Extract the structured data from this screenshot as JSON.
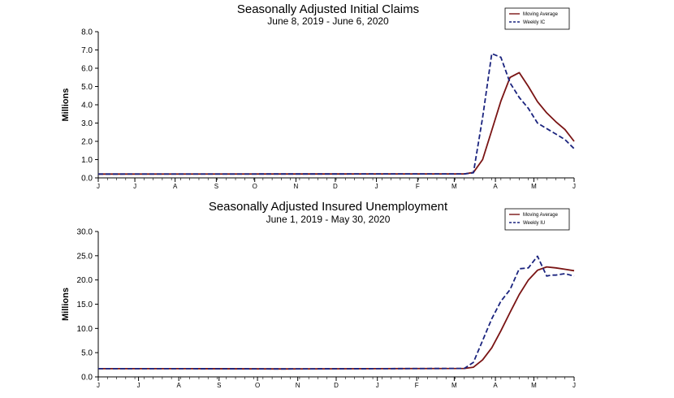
{
  "colors": {
    "moving_average": "#7a1414",
    "weekly": "#1a237e",
    "axis": "#000000",
    "grid": "#c8c8c8"
  },
  "chart_data": [
    {
      "id": "initial",
      "type": "line",
      "title": "Seasonally Adjusted Initial Claims",
      "subtitle": "June 8, 2019 - June 6, 2020",
      "ylabel": "Millions",
      "ylim": [
        0,
        8
      ],
      "ytick_labels": [
        "0.0",
        "1.0",
        "2.0",
        "3.0",
        "4.0",
        "5.0",
        "6.0",
        "7.0",
        "8.0"
      ],
      "x_ticks": [
        {
          "label": "J",
          "pos": 0
        },
        {
          "label": "J",
          "pos": 4
        },
        {
          "label": "A",
          "pos": 8.4
        },
        {
          "label": "S",
          "pos": 12.9
        },
        {
          "label": "O",
          "pos": 17.1
        },
        {
          "label": "N",
          "pos": 21.6
        },
        {
          "label": "D",
          "pos": 25.9
        },
        {
          "label": "J",
          "pos": 30.4
        },
        {
          "label": "F",
          "pos": 34.9
        },
        {
          "label": "M",
          "pos": 38.9
        },
        {
          "label": "A",
          "pos": 43.4
        },
        {
          "label": "M",
          "pos": 47.6
        },
        {
          "label": "J",
          "pos": 52
        }
      ],
      "xlim": [
        0,
        52
      ],
      "grid": false,
      "legend_position": "top-right",
      "series": [
        {
          "name": "Moving Average",
          "style": "solid",
          "colorKey": "moving_average",
          "x": [
            0,
            40,
            41,
            42,
            43,
            44,
            45,
            46,
            47,
            48,
            49,
            50,
            51,
            52
          ],
          "y": [
            0.21,
            0.22,
            0.3,
            1.0,
            2.6,
            4.2,
            5.5,
            5.76,
            5.0,
            4.17,
            3.56,
            3.07,
            2.65,
            2.0
          ]
        },
        {
          "name": "Weekly IC",
          "style": "dashed",
          "colorKey": "weekly",
          "x": [
            0,
            40,
            41,
            42,
            43,
            44,
            45,
            46,
            47,
            48,
            49,
            50,
            51,
            52
          ],
          "y": [
            0.21,
            0.22,
            0.28,
            3.3,
            6.8,
            6.6,
            5.2,
            4.4,
            3.8,
            3.0,
            2.7,
            2.4,
            2.1,
            1.6
          ]
        }
      ]
    },
    {
      "id": "insured",
      "type": "line",
      "title": "Seasonally Adjusted Insured Unemployment",
      "subtitle": "June 1, 2019 - May 30, 2020",
      "ylabel": "Millions",
      "ylim": [
        0,
        30
      ],
      "ytick_labels": [
        "0.0",
        "5.0",
        "10.0",
        "15.0",
        "20.0",
        "25.0",
        "30.0"
      ],
      "x_ticks": [
        {
          "label": "J",
          "pos": 0
        },
        {
          "label": "J",
          "pos": 4.4
        },
        {
          "label": "A",
          "pos": 8.8
        },
        {
          "label": "S",
          "pos": 13.2
        },
        {
          "label": "O",
          "pos": 17.4
        },
        {
          "label": "N",
          "pos": 21.8
        },
        {
          "label": "D",
          "pos": 26
        },
        {
          "label": "J",
          "pos": 30.5
        },
        {
          "label": "F",
          "pos": 34.8
        },
        {
          "label": "M",
          "pos": 38.9
        },
        {
          "label": "A",
          "pos": 43.4
        },
        {
          "label": "M",
          "pos": 47.6
        },
        {
          "label": "J",
          "pos": 52
        }
      ],
      "xlim": [
        0,
        52
      ],
      "grid": false,
      "legend_position": "top-right",
      "series": [
        {
          "name": "Moving Average",
          "style": "solid",
          "colorKey": "moving_average",
          "x": [
            0,
            10,
            20,
            30,
            40,
            41,
            42,
            43,
            44,
            45,
            46,
            47,
            48,
            49,
            50,
            51,
            52
          ],
          "y": [
            1.7,
            1.7,
            1.65,
            1.7,
            1.75,
            2.0,
            3.5,
            6.0,
            9.5,
            13.3,
            17.0,
            20.0,
            22.0,
            22.7,
            22.5,
            22.2,
            21.9
          ]
        },
        {
          "name": "Weekly IU",
          "style": "dashed",
          "colorKey": "weekly",
          "x": [
            0,
            10,
            20,
            30,
            40,
            41,
            42,
            43,
            44,
            45,
            46,
            47,
            48,
            49,
            49.5,
            50,
            51,
            52
          ],
          "y": [
            1.7,
            1.7,
            1.65,
            1.7,
            1.75,
            3.0,
            7.5,
            12.0,
            15.6,
            18.0,
            22.3,
            22.5,
            24.9,
            20.8,
            21.0,
            21.0,
            21.3,
            20.8
          ]
        }
      ]
    }
  ]
}
